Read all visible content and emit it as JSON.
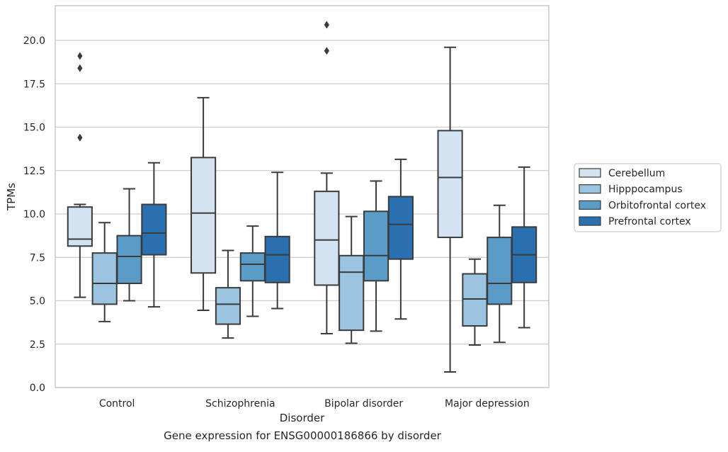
{
  "chart_data": {
    "type": "box",
    "xlabel": "Disorder",
    "ylabel": "TPMs",
    "ylim": [
      0,
      22
    ],
    "yticks": [
      "0.0",
      "2.5",
      "5.0",
      "7.5",
      "10.0",
      "12.5",
      "15.0",
      "17.5",
      "20.0"
    ],
    "grid": true,
    "legend_position": "right",
    "categories": [
      "Control",
      "Schizophrenia",
      "Bipolar disorder",
      "Major depression"
    ],
    "series": [
      {
        "name": "Cerebellum",
        "color": "#d3e3f2",
        "boxes": [
          {
            "whislo": 5.2,
            "q1": 8.15,
            "med": 8.55,
            "q3": 10.4,
            "whishi": 10.55,
            "fliers": [
              14.4,
              18.4,
              19.1
            ]
          },
          {
            "whislo": 4.45,
            "q1": 6.6,
            "med": 10.05,
            "q3": 13.25,
            "whishi": 16.7,
            "fliers": []
          },
          {
            "whislo": 3.1,
            "q1": 5.9,
            "med": 8.5,
            "q3": 11.3,
            "whishi": 12.35,
            "fliers": [
              19.4,
              20.9
            ]
          },
          {
            "whislo": 0.9,
            "q1": 8.65,
            "med": 12.1,
            "q3": 14.8,
            "whishi": 19.6,
            "fliers": []
          }
        ]
      },
      {
        "name": "Hipppocampus",
        "color": "#9ac4df",
        "boxes": [
          {
            "whislo": 3.8,
            "q1": 4.8,
            "med": 6.0,
            "q3": 7.75,
            "whishi": 9.5,
            "fliers": []
          },
          {
            "whislo": 2.85,
            "q1": 3.65,
            "med": 4.8,
            "q3": 5.75,
            "whishi": 7.9,
            "fliers": []
          },
          {
            "whislo": 2.55,
            "q1": 3.3,
            "med": 6.65,
            "q3": 7.6,
            "whishi": 9.85,
            "fliers": []
          },
          {
            "whislo": 2.45,
            "q1": 3.55,
            "med": 5.1,
            "q3": 6.55,
            "whishi": 7.4,
            "fliers": []
          }
        ]
      },
      {
        "name": "Orbitofrontal cortex",
        "color": "#5a9bc8",
        "boxes": [
          {
            "whislo": 5.0,
            "q1": 6.0,
            "med": 7.55,
            "q3": 8.75,
            "whishi": 11.45,
            "fliers": []
          },
          {
            "whislo": 4.1,
            "q1": 6.15,
            "med": 7.1,
            "q3": 7.75,
            "whishi": 9.3,
            "fliers": []
          },
          {
            "whislo": 3.25,
            "q1": 6.15,
            "med": 7.6,
            "q3": 10.15,
            "whishi": 11.9,
            "fliers": []
          },
          {
            "whislo": 2.6,
            "q1": 4.8,
            "med": 6.0,
            "q3": 8.65,
            "whishi": 10.5,
            "fliers": []
          }
        ]
      },
      {
        "name": "Prefrontal cortex",
        "color": "#2a70b1",
        "boxes": [
          {
            "whislo": 4.65,
            "q1": 7.65,
            "med": 8.9,
            "q3": 10.55,
            "whishi": 12.95,
            "fliers": []
          },
          {
            "whislo": 4.55,
            "q1": 6.05,
            "med": 7.65,
            "q3": 8.7,
            "whishi": 12.4,
            "fliers": []
          },
          {
            "whislo": 3.95,
            "q1": 7.4,
            "med": 9.4,
            "q3": 11.0,
            "whishi": 13.15,
            "fliers": []
          },
          {
            "whislo": 3.45,
            "q1": 6.05,
            "med": 7.65,
            "q3": 9.25,
            "whishi": 12.7,
            "fliers": []
          }
        ]
      }
    ],
    "caption": "Gene expression for ENSG00000186866 by disorder"
  }
}
